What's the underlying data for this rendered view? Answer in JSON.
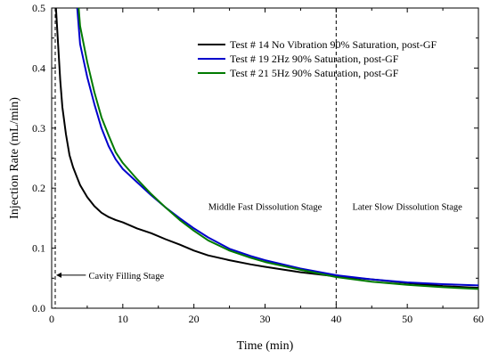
{
  "chart_data": {
    "type": "line",
    "title": "",
    "xlabel": "Time (min)",
    "ylabel": "Injection Rate (mL/min)",
    "xlim": [
      0,
      60
    ],
    "ylim": [
      0,
      0.5
    ],
    "x_ticks": [
      0,
      10,
      20,
      30,
      40,
      50,
      60
    ],
    "y_ticks": [
      0.0,
      0.1,
      0.2,
      0.3,
      0.4,
      0.5
    ],
    "grid": false,
    "legend_position": "top-right",
    "series": [
      {
        "name": "Test # 14 No Vibration 90% Saturation, post-GF",
        "color": "#000000",
        "x": [
          0.6,
          0.9,
          1.2,
          1.5,
          2.0,
          2.5,
          3.0,
          3.5,
          4.0,
          5.0,
          6.0,
          7.0,
          8.0,
          9.0,
          10.0,
          12.0,
          14.0,
          16.0,
          18.0,
          20.0,
          22.0,
          25.0,
          28.0,
          30.0,
          35.0,
          40.0,
          45.0,
          50.0,
          55.0,
          60.0
        ],
        "y": [
          0.5,
          0.44,
          0.38,
          0.335,
          0.29,
          0.255,
          0.235,
          0.22,
          0.205,
          0.185,
          0.17,
          0.159,
          0.152,
          0.147,
          0.143,
          0.133,
          0.125,
          0.115,
          0.106,
          0.096,
          0.088,
          0.08,
          0.073,
          0.069,
          0.06,
          0.053,
          0.048,
          0.042,
          0.037,
          0.034
        ]
      },
      {
        "name": "Test # 19 2Hz 90% Saturation, post-GF",
        "color": "#0000cc",
        "x": [
          3.6,
          4.0,
          5.0,
          6.0,
          7.0,
          8.0,
          9.0,
          10.0,
          12.0,
          14.0,
          16.0,
          18.0,
          20.0,
          22.0,
          25.0,
          28.0,
          30.0,
          35.0,
          40.0,
          45.0,
          50.0,
          55.0,
          60.0
        ],
        "y": [
          0.5,
          0.44,
          0.385,
          0.34,
          0.3,
          0.27,
          0.248,
          0.232,
          0.21,
          0.188,
          0.168,
          0.15,
          0.133,
          0.118,
          0.099,
          0.087,
          0.08,
          0.066,
          0.055,
          0.048,
          0.043,
          0.04,
          0.038
        ]
      },
      {
        "name": "Test # 21 5Hz 90% Saturation, post-GF",
        "color": "#007a00",
        "x": [
          3.8,
          4.0,
          5.0,
          6.0,
          7.0,
          8.0,
          9.0,
          10.0,
          12.0,
          14.0,
          16.0,
          18.0,
          20.0,
          22.0,
          25.0,
          28.0,
          30.0,
          35.0,
          40.0,
          45.0,
          50.0,
          55.0,
          60.0
        ],
        "y": [
          0.5,
          0.47,
          0.41,
          0.36,
          0.318,
          0.288,
          0.26,
          0.242,
          0.215,
          0.19,
          0.168,
          0.147,
          0.129,
          0.113,
          0.096,
          0.084,
          0.077,
          0.064,
          0.052,
          0.044,
          0.039,
          0.035,
          0.032
        ]
      }
    ],
    "reference_lines": [
      {
        "x": 0.5,
        "style": "dashed"
      },
      {
        "x": 40,
        "style": "dashed"
      }
    ],
    "annotations": [
      {
        "text": "Middle Fast Dissolution Stage",
        "x": 30,
        "y": 0.17
      },
      {
        "text": "Later Slow Dissolution Stage",
        "x": 50,
        "y": 0.17
      },
      {
        "text": "Cavity Filling Stage",
        "x": 10.5,
        "y": 0.055
      }
    ]
  }
}
